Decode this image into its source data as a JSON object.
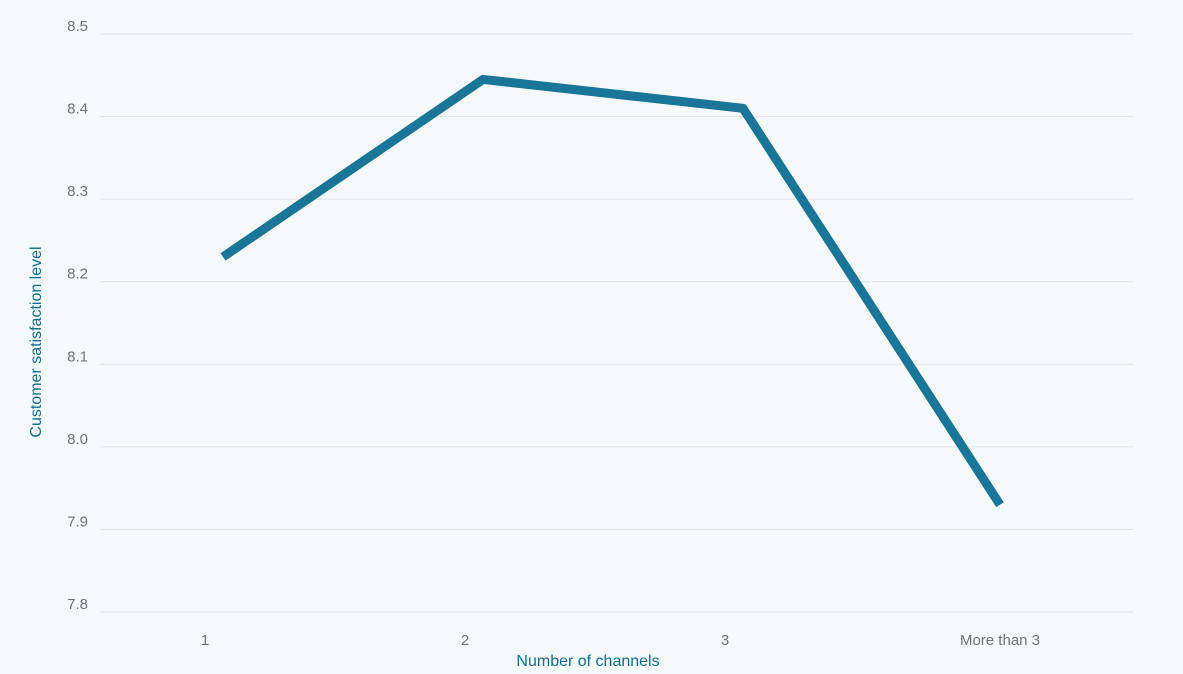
{
  "chart_data": {
    "type": "line",
    "title": "",
    "xlabel": "Number of channels",
    "ylabel": "Customer satisfaction level",
    "categories": [
      "1",
      "2",
      "3",
      "More than 3"
    ],
    "series": [
      {
        "values": [
          8.23,
          8.445,
          8.41,
          7.93
        ]
      }
    ],
    "ylim": [
      7.8,
      8.5
    ],
    "yticks": [
      "8.5",
      "8.4",
      "8.3",
      "8.2",
      "8.1",
      "8.0",
      "7.9",
      "7.8"
    ],
    "grid": true,
    "legend": "none",
    "colors": {
      "line": "#1a7698",
      "axis_title": "#0e6f8e",
      "tick_label": "#6e7478",
      "grid": "#dde3e7",
      "background": "#f4f9fc"
    }
  }
}
